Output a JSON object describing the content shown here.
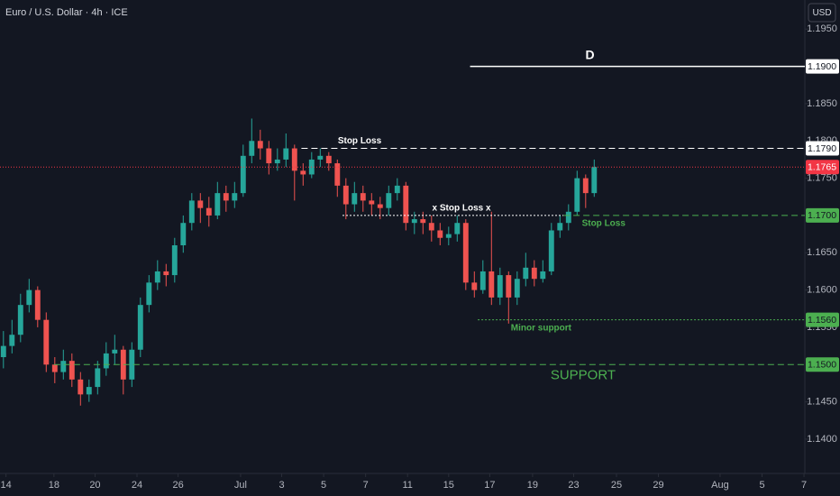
{
  "chart_data": {
    "type": "candlestick",
    "title": "Euro / U.S. Dollar · 4h · ICE",
    "currency": "USD",
    "up_color": "#26a69a",
    "down_color": "#ef5350",
    "grid": false,
    "xlim": [
      -0.4,
      93.6
    ],
    "ylim": [
      1.1354,
      1.1989
    ],
    "xticks": [
      {
        "value": 0.3,
        "label": "14"
      },
      {
        "value": 5.9,
        "label": "18"
      },
      {
        "value": 10.7,
        "label": "20"
      },
      {
        "value": 15.6,
        "label": "24"
      },
      {
        "value": 20.4,
        "label": "26"
      },
      {
        "value": 27.7,
        "label": "Jul"
      },
      {
        "value": 32.5,
        "label": "3"
      },
      {
        "value": 37.4,
        "label": "5"
      },
      {
        "value": 42.3,
        "label": "7"
      },
      {
        "value": 47.2,
        "label": "11"
      },
      {
        "value": 52,
        "label": "15"
      },
      {
        "value": 56.8,
        "label": "17"
      },
      {
        "value": 61.8,
        "label": "19"
      },
      {
        "value": 66.6,
        "label": "23"
      },
      {
        "value": 71.6,
        "label": "25"
      },
      {
        "value": 76.5,
        "label": "29"
      },
      {
        "value": 83.7,
        "label": "Aug"
      },
      {
        "value": 88.6,
        "label": "5"
      },
      {
        "value": 93.5,
        "label": "7"
      }
    ],
    "yticks": [
      {
        "value": 1.195,
        "label": "1.1950"
      },
      {
        "value": 1.185,
        "label": "1.1850"
      },
      {
        "value": 1.18,
        "label": "1.1800"
      },
      {
        "value": 1.175,
        "label": "1.1750"
      },
      {
        "value": 1.165,
        "label": "1.1650"
      },
      {
        "value": 1.16,
        "label": "1.1600"
      },
      {
        "value": 1.155,
        "label": "1.1550"
      },
      {
        "value": 1.145,
        "label": "1.1450"
      },
      {
        "value": 1.14,
        "label": "1.1400"
      }
    ],
    "candles": [
      [
        1.151,
        1.1545,
        1.1495,
        1.1525
      ],
      [
        1.1525,
        1.156,
        1.1515,
        1.154
      ],
      [
        1.154,
        1.1595,
        1.153,
        1.158
      ],
      [
        1.158,
        1.1615,
        1.157,
        1.16
      ],
      [
        1.16,
        1.1605,
        1.155,
        1.156
      ],
      [
        1.156,
        1.157,
        1.149,
        1.15
      ],
      [
        1.15,
        1.151,
        1.1475,
        1.149
      ],
      [
        1.149,
        1.152,
        1.148,
        1.1505
      ],
      [
        1.1505,
        1.1515,
        1.147,
        1.148
      ],
      [
        1.148,
        1.149,
        1.1445,
        1.146
      ],
      [
        1.146,
        1.148,
        1.145,
        1.147
      ],
      [
        1.147,
        1.1505,
        1.146,
        1.1495
      ],
      [
        1.1495,
        1.153,
        1.1485,
        1.1515
      ],
      [
        1.1515,
        1.154,
        1.15,
        1.152
      ],
      [
        1.152,
        1.1525,
        1.146,
        1.148
      ],
      [
        1.148,
        1.153,
        1.147,
        1.152
      ],
      [
        1.152,
        1.159,
        1.151,
        1.158
      ],
      [
        1.158,
        1.162,
        1.157,
        1.161
      ],
      [
        1.161,
        1.164,
        1.16,
        1.1625
      ],
      [
        1.1625,
        1.1635,
        1.1605,
        1.162
      ],
      [
        1.162,
        1.167,
        1.161,
        1.166
      ],
      [
        1.166,
        1.17,
        1.165,
        1.169
      ],
      [
        1.169,
        1.173,
        1.168,
        1.172
      ],
      [
        1.172,
        1.173,
        1.169,
        1.171
      ],
      [
        1.171,
        1.1725,
        1.1685,
        1.17
      ],
      [
        1.17,
        1.1745,
        1.1695,
        1.173
      ],
      [
        1.173,
        1.174,
        1.1705,
        1.172
      ],
      [
        1.172,
        1.1745,
        1.171,
        1.173
      ],
      [
        1.173,
        1.1795,
        1.1725,
        1.178
      ],
      [
        1.178,
        1.183,
        1.177,
        1.18
      ],
      [
        1.18,
        1.1815,
        1.1775,
        1.179
      ],
      [
        1.179,
        1.18,
        1.1755,
        1.177
      ],
      [
        1.177,
        1.179,
        1.176,
        1.1775
      ],
      [
        1.1775,
        1.181,
        1.1765,
        1.179
      ],
      [
        1.179,
        1.1795,
        1.172,
        1.176
      ],
      [
        1.176,
        1.177,
        1.174,
        1.1755
      ],
      [
        1.1755,
        1.1785,
        1.175,
        1.1775
      ],
      [
        1.1775,
        1.179,
        1.1765,
        1.178
      ],
      [
        1.178,
        1.1785,
        1.176,
        1.177
      ],
      [
        1.177,
        1.1775,
        1.1725,
        1.174
      ],
      [
        1.174,
        1.175,
        1.1695,
        1.1715
      ],
      [
        1.1715,
        1.1745,
        1.1705,
        1.173
      ],
      [
        1.173,
        1.174,
        1.1705,
        1.172
      ],
      [
        1.172,
        1.173,
        1.17,
        1.1715
      ],
      [
        1.1715,
        1.1725,
        1.1695,
        1.171
      ],
      [
        1.171,
        1.174,
        1.17,
        1.173
      ],
      [
        1.173,
        1.175,
        1.172,
        1.174
      ],
      [
        1.174,
        1.1745,
        1.168,
        1.169
      ],
      [
        1.169,
        1.1705,
        1.1675,
        1.1695
      ],
      [
        1.1695,
        1.1705,
        1.1675,
        1.169
      ],
      [
        1.169,
        1.17,
        1.1665,
        1.168
      ],
      [
        1.168,
        1.169,
        1.166,
        1.167
      ],
      [
        1.167,
        1.1685,
        1.166,
        1.1675
      ],
      [
        1.1675,
        1.17,
        1.1665,
        1.169
      ],
      [
        1.169,
        1.1695,
        1.16,
        1.161
      ],
      [
        1.161,
        1.1625,
        1.159,
        1.16
      ],
      [
        1.16,
        1.164,
        1.1595,
        1.1625
      ],
      [
        1.1625,
        1.1705,
        1.158,
        1.159
      ],
      [
        1.159,
        1.163,
        1.158,
        1.162
      ],
      [
        1.162,
        1.1625,
        1.1555,
        1.159
      ],
      [
        1.159,
        1.1625,
        1.158,
        1.1615
      ],
      [
        1.1615,
        1.165,
        1.1605,
        1.163
      ],
      [
        1.163,
        1.164,
        1.1605,
        1.1615
      ],
      [
        1.1615,
        1.164,
        1.161,
        1.1625
      ],
      [
        1.1625,
        1.169,
        1.162,
        1.168
      ],
      [
        1.168,
        1.17,
        1.167,
        1.169
      ],
      [
        1.169,
        1.1715,
        1.168,
        1.1705
      ],
      [
        1.1705,
        1.176,
        1.17,
        1.175
      ],
      [
        1.175,
        1.1755,
        1.171,
        1.173
      ],
      [
        1.173,
        1.1775,
        1.1725,
        1.1765
      ]
    ],
    "current_price": 1.1765,
    "current_price_label": "1.1765",
    "current_color": "#f23645",
    "annotations": [
      {
        "text": "D",
        "price": 1.19,
        "price_label": "1.1900",
        "color": "#ffffff",
        "style": "solid",
        "x_start": 54.5,
        "label_x": 68.5,
        "label_side": "above",
        "emphasis": true
      },
      {
        "text": "Stop Loss",
        "price": 1.179,
        "price_label": "1.1790",
        "color": "#ffffff",
        "style": "dashed",
        "x_start": 34.8,
        "label_x": 41.6,
        "label_side": "above"
      },
      {
        "text": "x Stop Loss x",
        "price": 1.17,
        "color": "#ffffff",
        "style": "dotted",
        "x_start": 39.6,
        "x_end": 65.4,
        "label_x": 53.5,
        "label_side": "above"
      },
      {
        "text": "Stop Loss",
        "price": 1.17,
        "price_label": "1.1700",
        "color": "#4caf50",
        "style": "dashed",
        "x_start": 65.4,
        "label_x": 70.1,
        "label_side": "below"
      },
      {
        "text": "Minor support",
        "price": 1.156,
        "price_label": "1.1560",
        "color": "#4caf50",
        "style": "dotted",
        "x_start": 55.4,
        "label_x": 62.8,
        "label_side": "below"
      },
      {
        "text": "SUPPORT",
        "price": 1.15,
        "price_label": "1.1500",
        "color": "#4caf50",
        "style": "dashed",
        "x_start": 5.9,
        "label_x": 67.7,
        "label_side": "below",
        "emphasis": true
      }
    ]
  }
}
